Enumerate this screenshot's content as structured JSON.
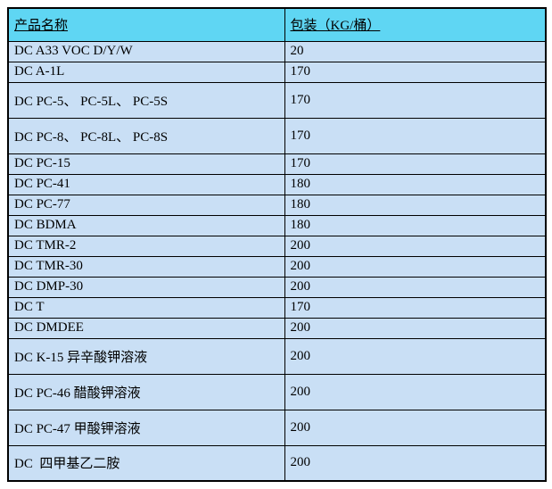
{
  "table": {
    "header": {
      "product_name": "产品名称",
      "packaging": "包装（KG/桶）"
    },
    "rows": [
      {
        "name": "DC A33 VOC D/Y/W",
        "pack": "20",
        "tall": false
      },
      {
        "name": "DC A-1L",
        "pack": "170",
        "tall": false
      },
      {
        "name": "DC PC-5、 PC-5L、 PC-5S",
        "pack": "170",
        "tall": true
      },
      {
        "name": "DC PC-8、 PC-8L、 PC-8S",
        "pack": "170",
        "tall": true
      },
      {
        "name": "DC PC-15",
        "pack": "170",
        "tall": false
      },
      {
        "name": "DC PC-41",
        "pack": "180",
        "tall": false
      },
      {
        "name": "DC PC-77",
        "pack": "180",
        "tall": false
      },
      {
        "name": "DC BDMA",
        "pack": "180",
        "tall": false
      },
      {
        "name": "DC TMR-2",
        "pack": "200",
        "tall": false
      },
      {
        "name": "DC TMR-30",
        "pack": "200",
        "tall": false
      },
      {
        "name": "DC DMP-30",
        "pack": "200",
        "tall": false
      },
      {
        "name": "DC T",
        "pack": "170",
        "tall": false
      },
      {
        "name": "DC DMDEE",
        "pack": "200",
        "tall": false
      },
      {
        "name": "DC K-15 异辛酸钾溶液",
        "pack": "200",
        "tall": true
      },
      {
        "name": "DC PC-46 醋酸钾溶液",
        "pack": "200",
        "tall": true
      },
      {
        "name": "DC PC-47 甲酸钾溶液",
        "pack": "200",
        "tall": true
      },
      {
        "name": "DC  四甲基乙二胺",
        "pack": "200",
        "tall": true
      }
    ]
  },
  "colors": {
    "header_bg": "#5FD6F3",
    "row_bg": "#C9DFF5",
    "border": "#000000",
    "text": "#000000"
  }
}
